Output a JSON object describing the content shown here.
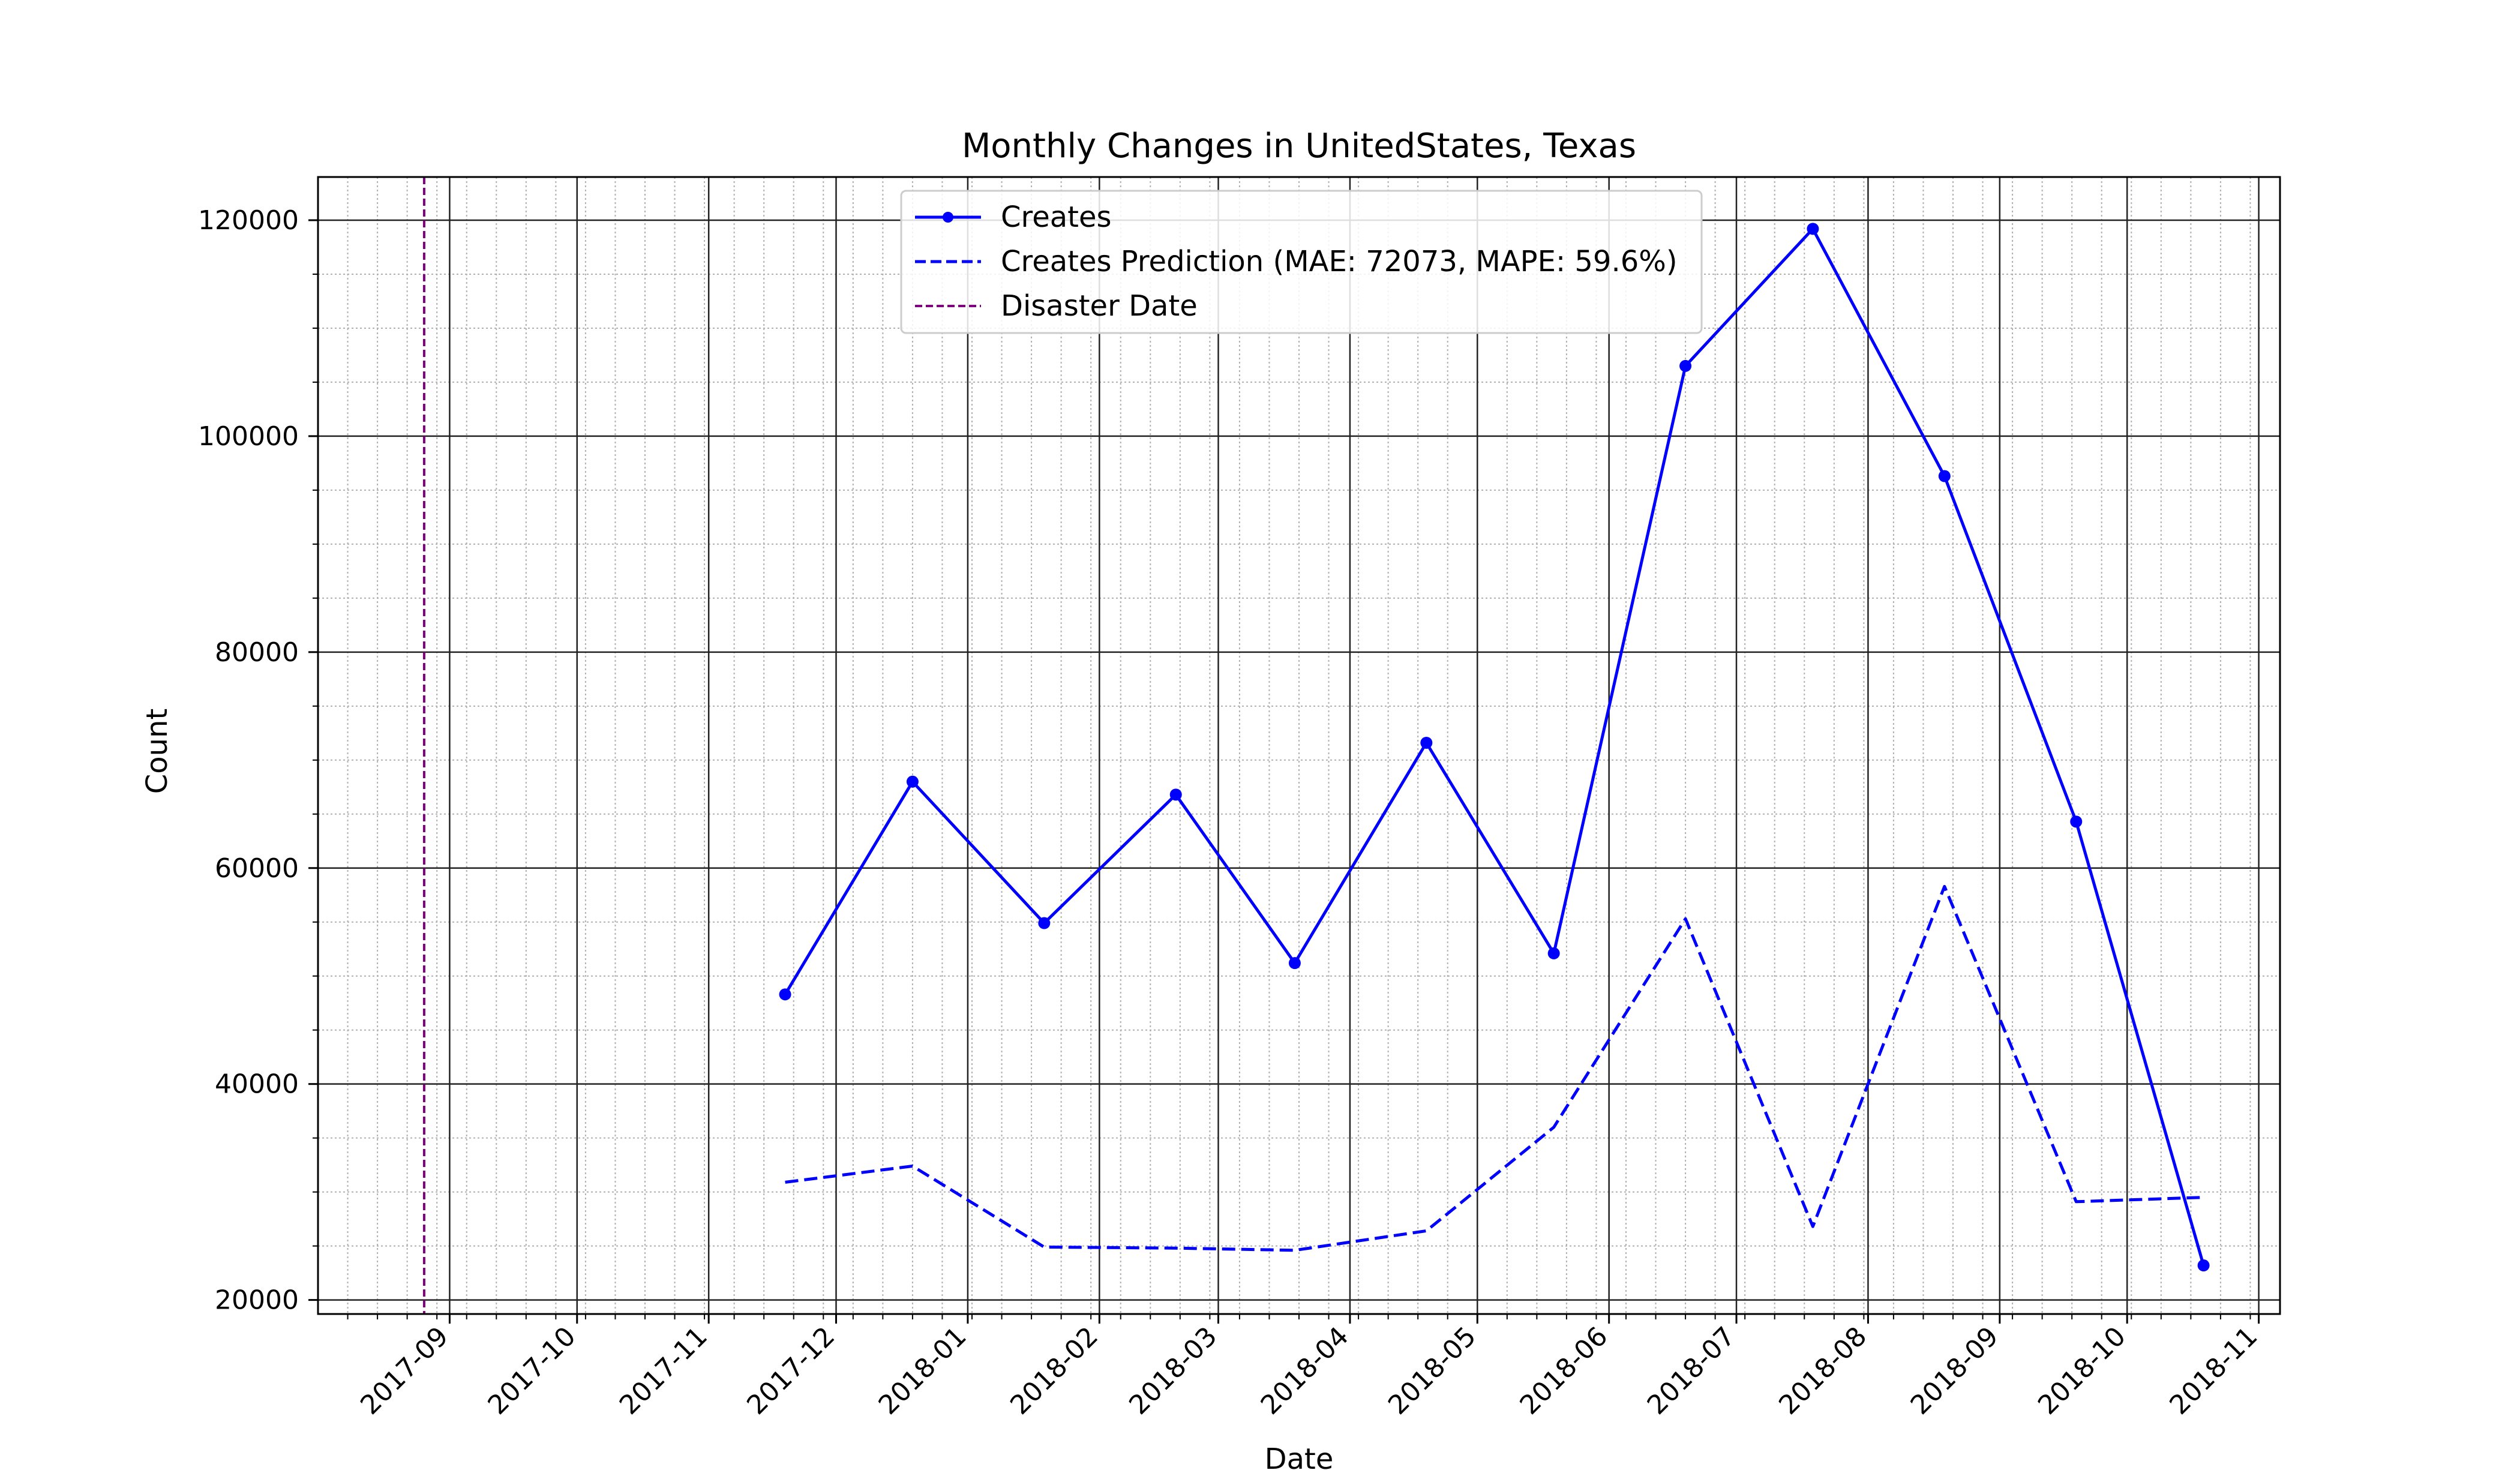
{
  "chart_data": {
    "type": "line",
    "title": "Monthly Changes in UnitedStates, Texas",
    "xlabel": "Date",
    "ylabel": "Count",
    "xlim": [
      "2017-08-01",
      "2018-11-06"
    ],
    "ylim": [
      18700,
      124000
    ],
    "grid": {
      "major": true,
      "minor": true
    },
    "legend_position": "top-center",
    "x_ticks": [
      "2017-09",
      "2017-10",
      "2017-11",
      "2017-12",
      "2018-01",
      "2018-02",
      "2018-03",
      "2018-04",
      "2018-05",
      "2018-06",
      "2018-07",
      "2018-08",
      "2018-09",
      "2018-10",
      "2018-11"
    ],
    "y_ticks": [
      20000,
      40000,
      60000,
      80000,
      100000,
      120000
    ],
    "series": [
      {
        "name": "Creates",
        "style": "solid-markers",
        "color": "#0000ff",
        "x": [
          "2017-11-19",
          "2017-12-19",
          "2018-01-19",
          "2018-02-19",
          "2018-03-19",
          "2018-04-19",
          "2018-05-19",
          "2018-06-19",
          "2018-07-19",
          "2018-08-19",
          "2018-09-19",
          "2018-10-19"
        ],
        "y": [
          48300,
          68000,
          54900,
          66800,
          51200,
          71600,
          52100,
          106500,
          119200,
          96300,
          64300,
          23200
        ]
      },
      {
        "name": "Creates Prediction (MAE: 72073, MAPE: 59.6%)",
        "style": "dashed",
        "color": "#0000ff",
        "x": [
          "2017-11-19",
          "2017-12-19",
          "2018-01-19",
          "2018-02-19",
          "2018-03-19",
          "2018-04-19",
          "2018-05-19",
          "2018-06-19",
          "2018-07-19",
          "2018-08-19",
          "2018-09-19",
          "2018-10-19"
        ],
        "y": [
          30900,
          32400,
          24900,
          24800,
          24600,
          26400,
          36000,
          55300,
          26800,
          58300,
          29100,
          29500
        ]
      }
    ],
    "vline": {
      "name": "Disaster Date",
      "x": "2017-08-26",
      "color": "#800080",
      "style": "dashed"
    }
  }
}
